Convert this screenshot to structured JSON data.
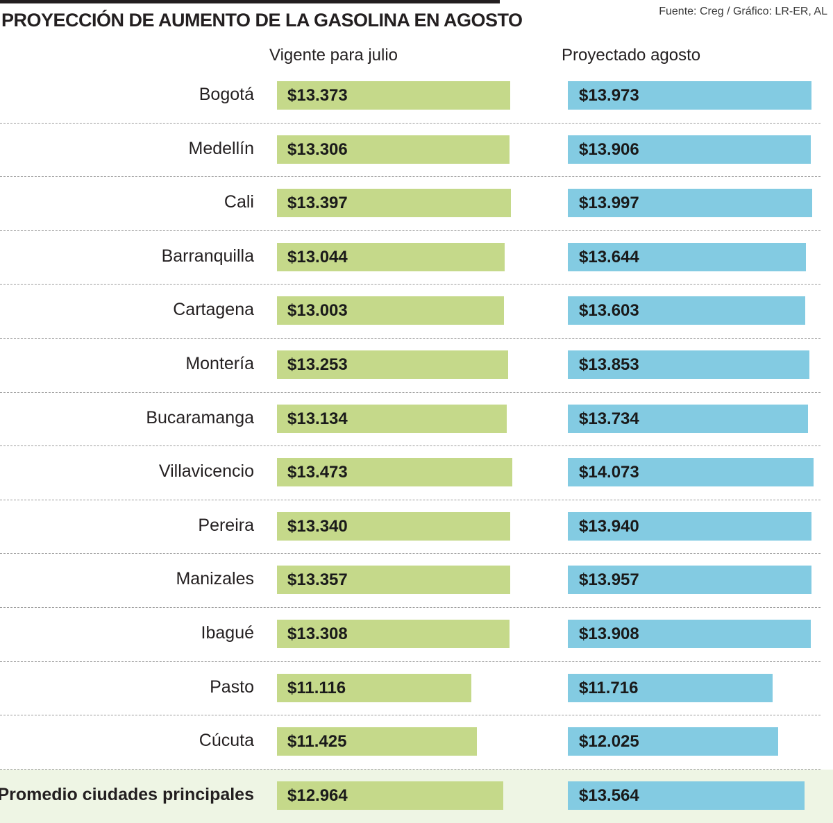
{
  "chart_data": {
    "type": "bar",
    "orientation": "horizontal",
    "title": "PROYECCIÓN DE AUMENTO DE LA GASOLINA EN AGOSTO",
    "source": "Fuente: Creg / Gráfico: LR-ER, AL",
    "categories": [
      "Bogotá",
      "Medellín",
      "Cali",
      "Barranquilla",
      "Cartagena",
      "Montería",
      "Bucaramanga",
      "Villavicencio",
      "Pereira",
      "Manizales",
      "Ibagué",
      "Pasto",
      "Cúcuta",
      "Promedio ciudades principales"
    ],
    "series": [
      {
        "name": "Vigente para julio",
        "color": "#c5d98a",
        "values": [
          13373,
          13306,
          13397,
          13044,
          13003,
          13253,
          13134,
          13473,
          13340,
          13357,
          13308,
          11116,
          11425,
          12964
        ],
        "labels": [
          "$13.373",
          "$13.306",
          "$13.397",
          "$13.044",
          "$13.003",
          "$13.253",
          "$13.134",
          "$13.473",
          "$13.340",
          "$13.357",
          "$13.308",
          "$11.116",
          "$11.425",
          "$12.964"
        ]
      },
      {
        "name": "Proyectado agosto",
        "color": "#83cbe2",
        "values": [
          13973,
          13906,
          13997,
          13644,
          13603,
          13853,
          13734,
          14073,
          13940,
          13957,
          13908,
          11716,
          12025,
          13564
        ],
        "labels": [
          "$13.973",
          "$13.906",
          "$13.997",
          "$13.644",
          "$13.603",
          "$13.853",
          "$13.734",
          "$14.073",
          "$13.940",
          "$13.957",
          "$13.908",
          "$11.716",
          "$12.025",
          "$13.564"
        ]
      }
    ],
    "xlim": [
      0,
      14073
    ],
    "highlight_category": "Promedio ciudades principales"
  }
}
